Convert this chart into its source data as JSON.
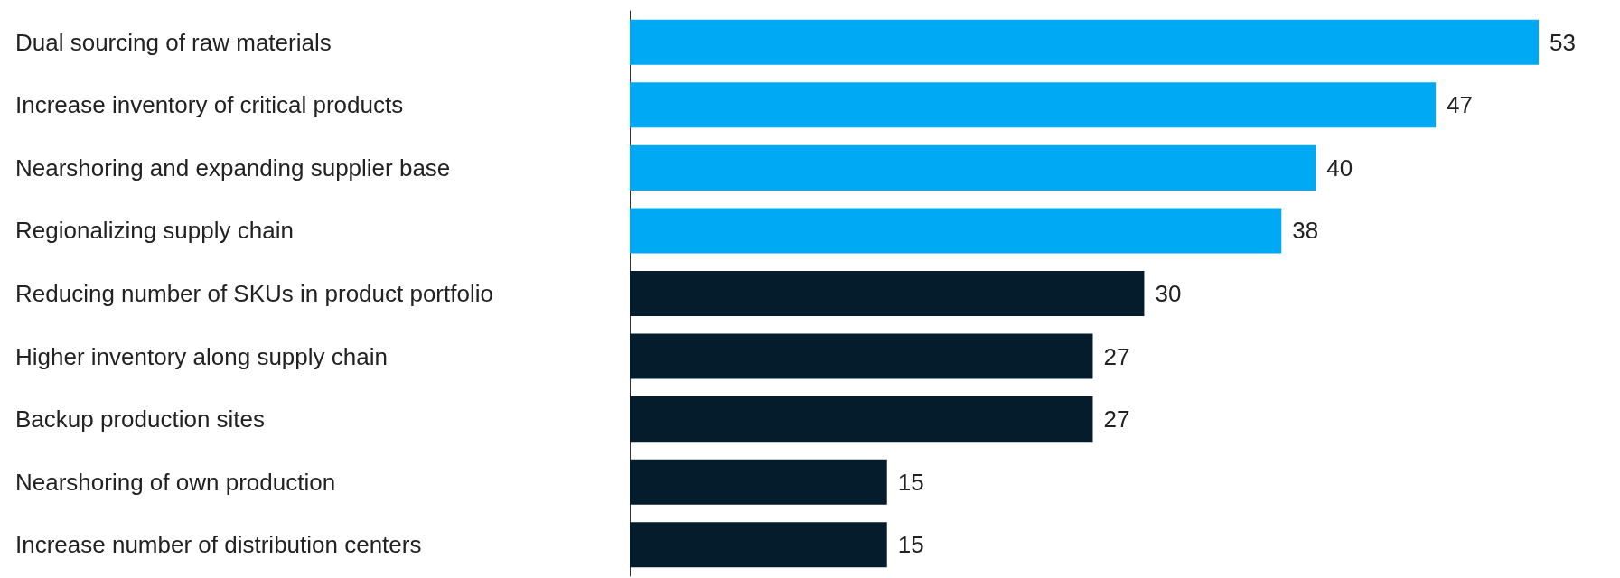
{
  "chart_data": {
    "type": "bar",
    "orientation": "horizontal",
    "categories": [
      "Dual sourcing of raw materials",
      "Increase inventory of critical products",
      "Nearshoring and expanding supplier base",
      "Regionalizing supply chain",
      "Reducing number of SKUs in product portfolio",
      "Higher inventory along supply chain",
      "Backup production sites",
      "Nearshoring of own production",
      "Increase number of distribution centers"
    ],
    "values": [
      53,
      47,
      40,
      38,
      30,
      27,
      27,
      15,
      15
    ],
    "colors": [
      "#00a9f4",
      "#00a9f4",
      "#00a9f4",
      "#00a9f4",
      "#051c2c",
      "#051c2c",
      "#051c2c",
      "#051c2c",
      "#051c2c"
    ],
    "data_labels": true
  }
}
